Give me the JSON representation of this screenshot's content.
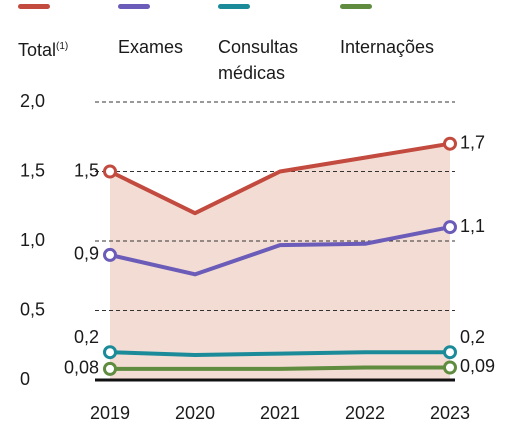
{
  "chart_data": {
    "type": "line",
    "legend_note": "(1)",
    "categories": [
      "2019",
      "2020",
      "2021",
      "2022",
      "2023"
    ],
    "series": [
      {
        "name": "Total",
        "color": "#c24a3e",
        "values": [
          1.5,
          1.2,
          1.5,
          1.6,
          1.7
        ],
        "value_labels": [
          "1,5",
          null,
          null,
          null,
          "1,7"
        ]
      },
      {
        "name": "Exames",
        "color": "#6a5cb8",
        "values": [
          0.9,
          0.76,
          0.97,
          0.98,
          1.1
        ],
        "value_labels": [
          "0,9",
          null,
          null,
          null,
          "1,1"
        ]
      },
      {
        "name": "Consultas médicas",
        "color": "#1b8b99",
        "values": [
          0.2,
          0.18,
          0.19,
          0.2,
          0.2
        ],
        "value_labels": [
          "0,2",
          null,
          null,
          null,
          "0,2"
        ]
      },
      {
        "name": "Internações",
        "color": "#5f8c3f",
        "values": [
          0.08,
          0.08,
          0.08,
          0.09,
          0.09
        ],
        "value_labels": [
          "0,08",
          null,
          null,
          null,
          "0,09"
        ]
      }
    ],
    "area_color": "#f3dcd3",
    "ylim": [
      0,
      2.0
    ],
    "yticks": [
      0,
      {
        "value": 0.5,
        "label": "0,5"
      },
      {
        "value": 1.0,
        "label": "1,0"
      },
      {
        "value": 1.5,
        "label": "1,5"
      },
      {
        "value": 2.0,
        "label": "2,0"
      }
    ],
    "grid": true
  }
}
